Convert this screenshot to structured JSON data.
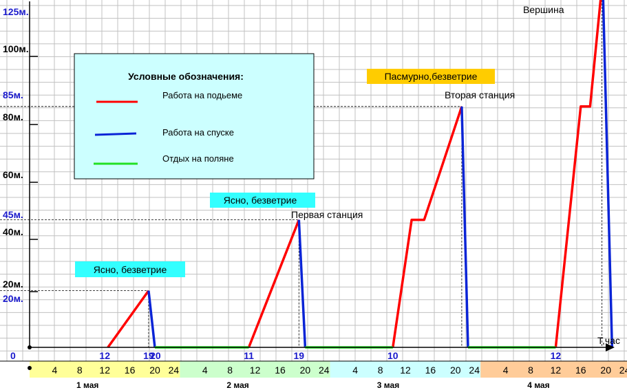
{
  "legend": {
    "title": "Условные обозначения:",
    "items": [
      {
        "label": "Работа на подьеме",
        "color": "#ff0000"
      },
      {
        "label": "Работа на спуске",
        "color": "#0a24d6"
      },
      {
        "label": "Отдых на поляне",
        "color": "#22e022"
      }
    ]
  },
  "y_axis": {
    "black_ticks": [
      {
        "value": 20,
        "label": "20м."
      },
      {
        "value": 40,
        "label": "40м."
      },
      {
        "value": 60,
        "label": "60м."
      },
      {
        "value": 80,
        "label": "80м."
      },
      {
        "value": 100,
        "label": "100м."
      }
    ],
    "blue_ticks": [
      {
        "value": 20,
        "label": "20м."
      },
      {
        "value": 45,
        "label": "45м."
      },
      {
        "value": 85,
        "label": "85м."
      },
      {
        "value": 125,
        "label": "125м."
      }
    ],
    "origin_label": "0"
  },
  "x_axis": {
    "unit_label": "T,час",
    "event_labels": [
      {
        "hour": 12,
        "label": "12"
      },
      {
        "hour": 19,
        "label": "19"
      },
      {
        "hour": 20.1,
        "label": "20"
      },
      {
        "hour": 35,
        "label": "11"
      },
      {
        "hour": 43,
        "label": "19"
      },
      {
        "hour": 58,
        "label": "10"
      },
      {
        "hour": 84,
        "label": "12"
      }
    ],
    "hour_bands": [
      {
        "day": "1 мая",
        "color": "#ffff99",
        "ticks": [
          "4",
          "8",
          "12",
          "16",
          "20",
          "24"
        ]
      },
      {
        "day": "2 мая",
        "color": "#ccffcc",
        "ticks": [
          "4",
          "8",
          "12",
          "16",
          "20",
          "24"
        ]
      },
      {
        "day": "3 мая",
        "color": "#ccffff",
        "ticks": [
          "4",
          "8",
          "12",
          "16",
          "20",
          "24"
        ]
      },
      {
        "day": "4 мая",
        "color": "#ffcc99",
        "ticks": [
          "4",
          "8",
          "12",
          "16",
          "20",
          "24"
        ]
      }
    ]
  },
  "annotations": {
    "weather_1": {
      "text": "Ясно, безветрие",
      "color": "#33ffff"
    },
    "weather_2": {
      "text": "Ясно, безветрие",
      "color": "#33ffff"
    },
    "weather_3": {
      "text": "Пасмурно,безветрие",
      "color": "#ffcc00"
    },
    "station_1": "Первая станция",
    "station_2": "Вторая станция",
    "summit": "Вершина"
  },
  "chart_data": {
    "type": "line",
    "x_unit": "hours from start of 1 May",
    "y_unit": "m",
    "xlim": [
      0,
      97
    ],
    "ylim": [
      0,
      125
    ],
    "series": [
      {
        "name": "Работа на подьеме",
        "color": "#ff0000",
        "segments": [
          [
            [
              12.5,
              0
            ],
            [
              19,
              20
            ]
          ],
          [
            [
              35,
              0
            ],
            [
              43,
              45
            ]
          ],
          [
            [
              58,
              0
            ],
            [
              61,
              45
            ],
            [
              63,
              45
            ],
            [
              69,
              85
            ]
          ],
          [
            [
              84,
              0
            ],
            [
              88,
              85
            ],
            [
              89.5,
              85
            ],
            [
              91.5,
              130
            ]
          ]
        ]
      },
      {
        "name": "Работа на спуске",
        "color": "#0a24d6",
        "segments": [
          [
            [
              19,
              20
            ],
            [
              20,
              0
            ]
          ],
          [
            [
              43,
              45
            ],
            [
              44,
              0
            ]
          ],
          [
            [
              69,
              85
            ],
            [
              70,
              0
            ]
          ],
          [
            [
              91.5,
              130
            ],
            [
              93,
              0
            ]
          ]
        ]
      },
      {
        "name": "Отдых на поляне",
        "color": "#22e022",
        "segments": [
          [
            [
              20,
              0
            ],
            [
              35,
              0
            ]
          ],
          [
            [
              44,
              0
            ],
            [
              58,
              0
            ]
          ],
          [
            [
              70,
              0
            ],
            [
              84,
              0
            ]
          ]
        ]
      }
    ]
  }
}
